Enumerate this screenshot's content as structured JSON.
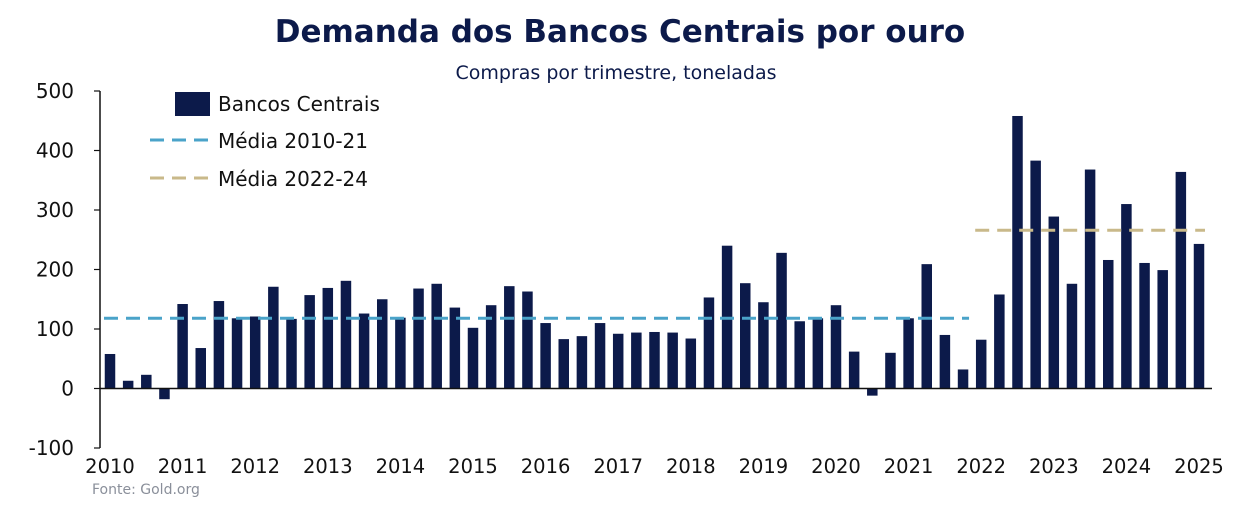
{
  "title": "Demanda dos Bancos Centrais por ouro",
  "subtitle": "Compras por trimestre, toneladas",
  "source": "Fonte: Gold.org",
  "chart_data": {
    "type": "bar",
    "title": "Demanda dos Bancos Centrais por ouro",
    "subtitle": "Compras por trimestre, toneladas",
    "xlabel": "",
    "ylabel": "",
    "ylim": [
      -100,
      500
    ],
    "yticks": [
      -100,
      0,
      100,
      200,
      300,
      400,
      500
    ],
    "year_labels": [
      "2010",
      "2011",
      "2012",
      "2013",
      "2014",
      "2015",
      "2016",
      "2017",
      "2018",
      "2019",
      "2020",
      "2021",
      "2022",
      "2023",
      "2024",
      "2025"
    ],
    "quarters": [
      "2010 T1",
      "2010 T2",
      "2010 T3",
      "2010 T4",
      "2011 T1",
      "2011 T2",
      "2011 T3",
      "2011 T4",
      "2012 T1",
      "2012 T2",
      "2012 T3",
      "2012 T4",
      "2013 T1",
      "2013 T2",
      "2013 T3",
      "2013 T4",
      "2014 T1",
      "2014 T2",
      "2014 T3",
      "2014 T4",
      "2015 T1",
      "2015 T2",
      "2015 T3",
      "2015 T4",
      "2016 T1",
      "2016 T2",
      "2016 T3",
      "2016 T4",
      "2017 T1",
      "2017 T2",
      "2017 T3",
      "2017 T4",
      "2018 T1",
      "2018 T2",
      "2018 T3",
      "2018 T4",
      "2019 T1",
      "2019 T2",
      "2019 T3",
      "2019 T4",
      "2020 T1",
      "2020 T2",
      "2020 T3",
      "2020 T4",
      "2021 T1",
      "2021 T2",
      "2021 T3",
      "2021 T4",
      "2022 T1",
      "2022 T2",
      "2022 T3",
      "2022 T4",
      "2023 T1",
      "2023 T2",
      "2023 T3",
      "2023 T4",
      "2024 T1",
      "2024 T2",
      "2024 T3",
      "2024 T4",
      "2025 T1"
    ],
    "series": [
      {
        "name": "Bancos Centrais",
        "color": "#0c1a4a",
        "values": [
          58,
          13,
          23,
          -18,
          142,
          68,
          147,
          118,
          121,
          171,
          117,
          157,
          169,
          181,
          126,
          150,
          119,
          168,
          176,
          136,
          102,
          140,
          172,
          163,
          110,
          83,
          88,
          110,
          92,
          94,
          95,
          94,
          84,
          153,
          240,
          177,
          145,
          228,
          113,
          118,
          140,
          62,
          -12,
          60,
          118,
          209,
          90,
          32,
          82,
          158,
          458,
          383,
          289,
          176,
          368,
          216,
          310,
          211,
          199,
          364,
          243
        ]
      }
    ],
    "reference_lines": [
      {
        "name": "Média 2010-21",
        "value": 118,
        "from": "2010 T1",
        "to": "2021 T4",
        "color": "#4aa3c9",
        "style": "dashed"
      },
      {
        "name": "Média 2022-24",
        "value": 266,
        "from": "2022 T1",
        "to": "2025 T1",
        "color": "#c9b98a",
        "style": "dashed"
      }
    ],
    "legend": {
      "placement": "top-left",
      "entries": [
        "Bancos Centrais",
        "Média 2010-21",
        "Média 2022-24"
      ]
    },
    "grid": false
  }
}
